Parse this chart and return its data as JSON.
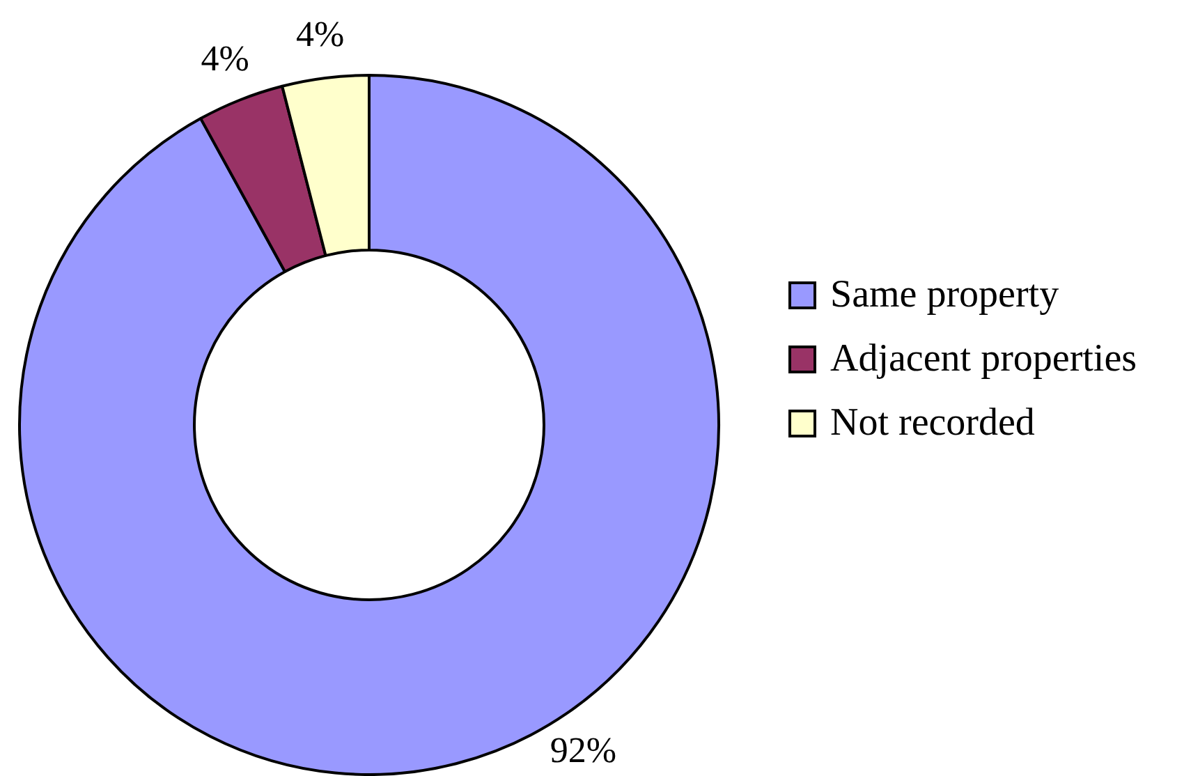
{
  "chart_data": {
    "type": "donut",
    "categories": [
      "Same property",
      "Adjacent properties",
      "Not recorded"
    ],
    "values": [
      92,
      4,
      4
    ],
    "colors": [
      "#9999ff",
      "#993366",
      "#ffffcc"
    ],
    "value_labels": [
      "92%",
      "4%",
      "4%"
    ],
    "legend": "right"
  }
}
